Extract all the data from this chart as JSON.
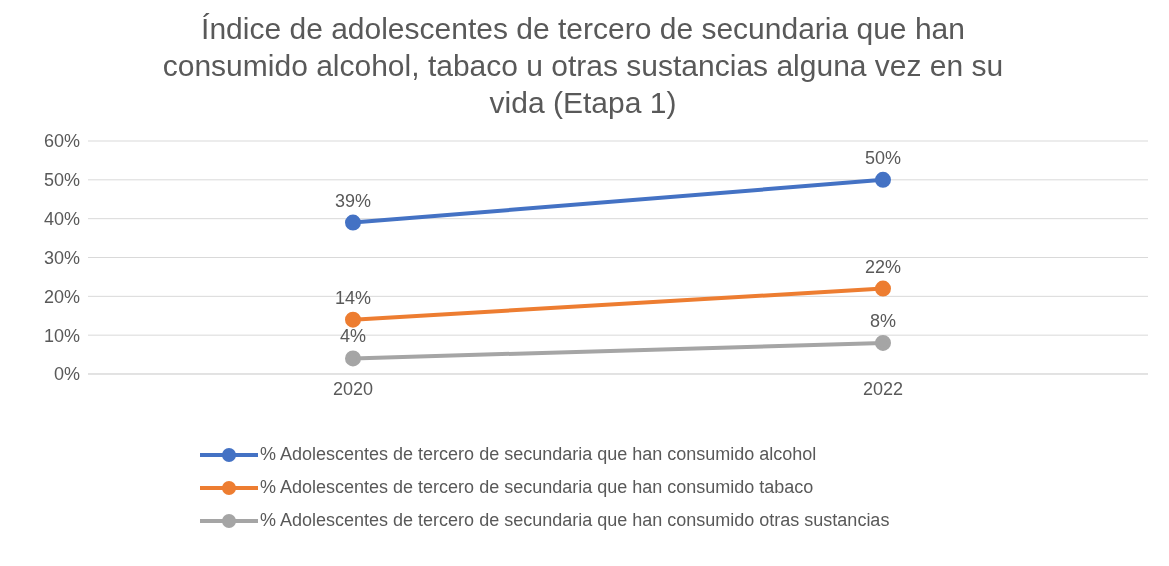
{
  "chart_data": {
    "type": "line",
    "title": "Índice de adolescentes de tercero de secundaria que han consumido alcohol, tabaco u otras sustancias alguna vez en su vida (Etapa 1)",
    "categories": [
      "2020",
      "2022"
    ],
    "series": [
      {
        "name": "% Adolescentes de tercero de secundaria que han consumido alcohol",
        "color": "#4472c4",
        "values": [
          39,
          50
        ],
        "value_labels": [
          "39%",
          "50%"
        ]
      },
      {
        "name": "% Adolescentes de tercero de secundaria que han consumido tabaco",
        "color": "#ed7d31",
        "values": [
          14,
          22
        ],
        "value_labels": [
          "14%",
          "22%"
        ]
      },
      {
        "name": "% Adolescentes de tercero de secundaria que han consumido otras sustancias",
        "color": "#a5a5a5",
        "values": [
          4,
          8
        ],
        "value_labels": [
          "4%",
          "8%"
        ]
      }
    ],
    "ylim": [
      0,
      60
    ],
    "yticks": [
      {
        "value": 0,
        "label": "0%"
      },
      {
        "value": 10,
        "label": "10%"
      },
      {
        "value": 20,
        "label": "20%"
      },
      {
        "value": 30,
        "label": "30%"
      },
      {
        "value": 40,
        "label": "40%"
      },
      {
        "value": 50,
        "label": "50%"
      },
      {
        "value": 60,
        "label": "60%"
      }
    ],
    "grid": "y",
    "legend": "bottom",
    "marker": "circle",
    "line_style": "solid"
  }
}
